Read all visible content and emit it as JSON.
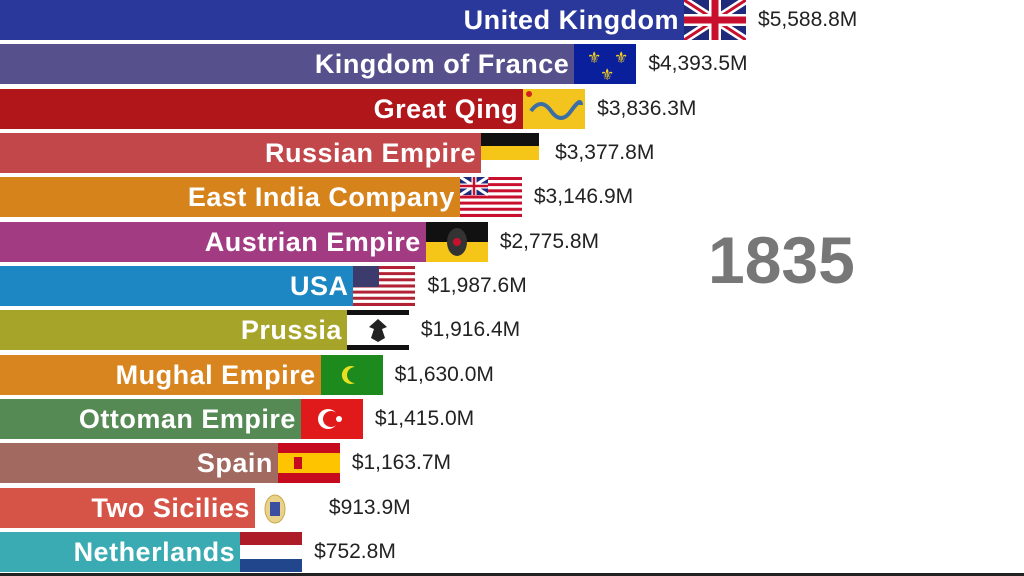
{
  "chart_data": {
    "type": "bar",
    "orientation": "horizontal",
    "annotation": "1835",
    "unit_format": "$#,###.#M",
    "categories": [
      "United Kingdom",
      "Kingdom of France",
      "Great Qing",
      "Russian Empire",
      "East India Company",
      "Austrian Empire",
      "USA",
      "Prussia",
      "Mughal Empire",
      "Ottoman Empire",
      "Spain",
      "Two Sicilies",
      "Netherlands"
    ],
    "values": [
      5588.8,
      4393.5,
      3836.3,
      3377.8,
      3146.9,
      2775.8,
      1987.6,
      1916.4,
      1630.0,
      1415.0,
      1163.7,
      913.9,
      752.8
    ],
    "value_labels": [
      "$5,588.8M",
      "$4,393.5M",
      "$3,836.3M",
      "$3,377.8M",
      "$3,146.9M",
      "$2,775.8M",
      "$1,987.6M",
      "$1,916.4M",
      "$1,630.0M",
      "$1,415.0M",
      "$1,163.7M",
      "$913.9M",
      "$752.8M"
    ],
    "colors": [
      "#2a379b",
      "#56508c",
      "#b0161a",
      "#c2474a",
      "#d6831b",
      "#a23b82",
      "#1c87c2",
      "#a7a42a",
      "#d9851f",
      "#558a55",
      "#a1695f",
      "#d55447",
      "#3aabb2"
    ],
    "flags": [
      "uk-flag-icon",
      "france-flag-icon",
      "qing-flag-icon",
      "russia-flag-icon",
      "eic-flag-icon",
      "austria-flag-icon",
      "usa-flag-icon",
      "prussia-flag-icon",
      "mughal-flag-icon",
      "ottoman-flag-icon",
      "spain-flag-icon",
      "two-sicilies-flag-icon",
      "netherlands-flag-icon"
    ]
  }
}
